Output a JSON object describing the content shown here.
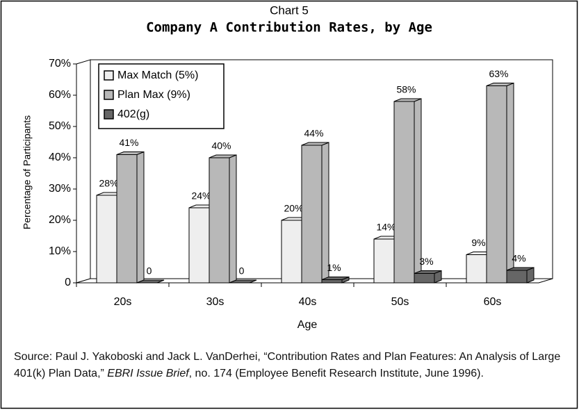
{
  "chart_data": {
    "type": "bar3d",
    "title": "Chart 5",
    "subtitle": "Company A Contribution Rates, by Age",
    "y_label": "Percentage of Participants",
    "x_label": "Age",
    "categories": [
      "20s",
      "30s",
      "40s",
      "50s",
      "60s"
    ],
    "series": [
      {
        "name": "Max Match (5%)",
        "color": "#eeeeee",
        "values": [
          28,
          24,
          20,
          14,
          9
        ],
        "value_labels": [
          "28%",
          "24%",
          "20%",
          "14%",
          "9%"
        ]
      },
      {
        "name": "Plan Max (9%)",
        "color": "#b8b8b8",
        "values": [
          41,
          40,
          44,
          58,
          63
        ],
        "value_labels": [
          "41%",
          "40%",
          "44%",
          "58%",
          "63%"
        ]
      },
      {
        "name": "402(g)",
        "color": "#666666",
        "values": [
          0,
          0,
          1,
          3,
          4
        ],
        "value_labels": [
          "0",
          "0",
          "1%",
          "3%",
          "4%"
        ]
      }
    ],
    "ylim": [
      0,
      70
    ],
    "yticks": [
      0,
      {
        "value": 10,
        "label": "10%"
      },
      {
        "value": 20,
        "label": "20%"
      },
      {
        "value": 30,
        "label": "30%"
      },
      {
        "value": 40,
        "label": "40%"
      },
      {
        "value": 50,
        "label": "50%"
      },
      {
        "value": 60,
        "label": "60%"
      },
      {
        "value": 70,
        "label": "70%"
      }
    ],
    "legend": "top-left",
    "source": [
      "Source: Paul J. Yakoboski and Jack L. VanDerhei, “Contribution Rates and Plan Features: An Analysis of Large 401(k) Plan Data,” ",
      "EBRI Issue Brief",
      ", no. 174 (Employee Benefit Research Institute, June 1996)."
    ]
  }
}
